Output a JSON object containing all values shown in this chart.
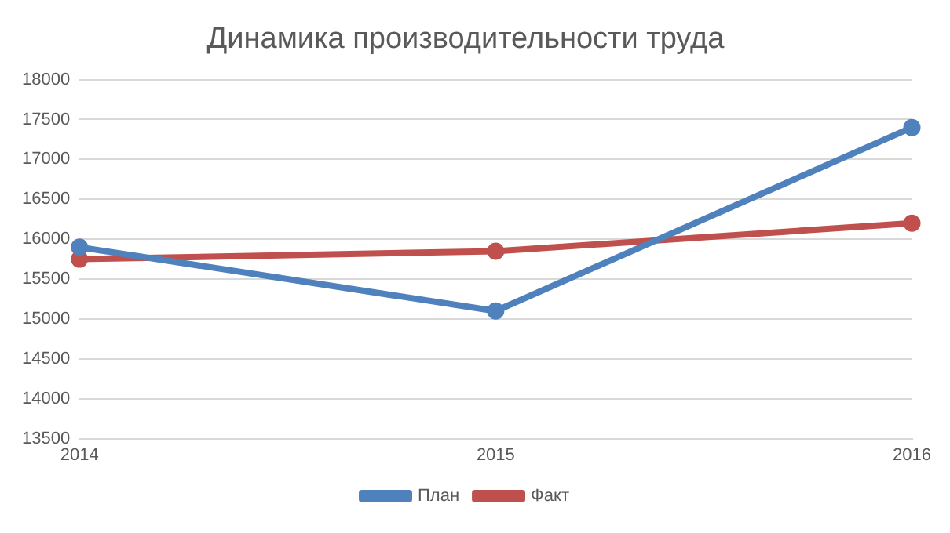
{
  "chart_data": {
    "type": "line",
    "title": "Динамика производительности труда",
    "categories": [
      "2014",
      "2015",
      "2016"
    ],
    "series": [
      {
        "name": "План",
        "color": "#4f81bd",
        "values": [
          15900,
          15100,
          17400
        ]
      },
      {
        "name": "Факт",
        "color": "#c0504d",
        "values": [
          15750,
          15850,
          16200
        ]
      }
    ],
    "ylim": [
      13500,
      18000
    ],
    "yticks": [
      13500,
      14000,
      14500,
      15000,
      15500,
      16000,
      16500,
      17000,
      17500,
      18000
    ],
    "grid": "y",
    "legend": "bottom",
    "marker": "circle",
    "line_style": "solid"
  }
}
